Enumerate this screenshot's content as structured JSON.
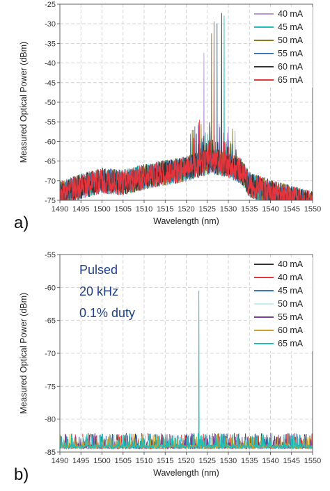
{
  "chart_data": [
    {
      "type": "line",
      "panel_label": "a)",
      "title": "",
      "xlabel": "Wavelength (nm)",
      "ylabel": "Measured Optical Power (dBm)",
      "xlim": [
        1490,
        1550
      ],
      "ylim": [
        -75,
        -25
      ],
      "x_ticks": [
        1490,
        1495,
        1500,
        1505,
        1510,
        1515,
        1520,
        1525,
        1530,
        1535,
        1540,
        1545,
        1550
      ],
      "x_tick_labels": [
        "1490",
        "1495",
        "1500",
        "1505",
        "1510",
        "1515",
        "1520",
        "1525",
        "1530",
        "1535",
        "1540",
        "1545",
        "1550"
      ],
      "y_ticks": [
        -75,
        -70,
        -65,
        -60,
        -55,
        -50,
        -45,
        -40,
        -35,
        -30,
        -25
      ],
      "y_tick_labels": [
        "-75",
        "-70",
        "-65",
        "-60",
        "-55",
        "-50",
        "-45",
        "-40",
        "-35",
        "-30",
        "-25"
      ],
      "grid": true,
      "legend_position": "top-right",
      "series": [
        {
          "name": "40 mA",
          "color": "#b794d4",
          "peak_x": 1524.2,
          "peak_y": -37.5
        },
        {
          "name": "45 mA",
          "color": "#1fbfb8",
          "peak_x": 1529.0,
          "peak_y": -28.0
        },
        {
          "name": "50 mA",
          "color": "#8a7f1c",
          "peak_x": 1526.0,
          "peak_y": -32.5
        },
        {
          "name": "55 mA",
          "color": "#3e77b8",
          "peak_x": 1527.3,
          "peak_y": -30.0
        },
        {
          "name": "60 mA",
          "color": "#333333",
          "peak_x": 1528.4,
          "peak_y": -27.3
        },
        {
          "name": "65 mA",
          "color": "#e8343c",
          "peak_x": 1526.6,
          "peak_y": -29.5
        }
      ],
      "envelope": [
        [
          1490,
          -73.5
        ],
        [
          1495,
          -71.5
        ],
        [
          1500,
          -70.0
        ],
        [
          1505,
          -70.5
        ],
        [
          1510,
          -69.0
        ],
        [
          1515,
          -68.0
        ],
        [
          1520,
          -67.0
        ],
        [
          1523,
          -66.0
        ],
        [
          1526,
          -65.0
        ],
        [
          1530,
          -66.0
        ],
        [
          1533,
          -67.5
        ],
        [
          1535,
          -71.0
        ],
        [
          1540,
          -73.0
        ],
        [
          1545,
          -74.5
        ],
        [
          1550,
          -76.0
        ]
      ]
    },
    {
      "type": "line",
      "panel_label": "b)",
      "title": "",
      "xlabel": "Wavelength (nm)",
      "ylabel": "Measured Optical Power (dBm)",
      "xlim": [
        1490,
        1550
      ],
      "ylim": [
        -85,
        -55
      ],
      "x_ticks": [
        1490,
        1495,
        1500,
        1505,
        1510,
        1515,
        1520,
        1525,
        1530,
        1535,
        1540,
        1545,
        1550
      ],
      "x_tick_labels": [
        "1490",
        "1495",
        "1500",
        "1505",
        "1510",
        "1515",
        "1520",
        "1525",
        "1530",
        "1535",
        "1540",
        "1545",
        "1550"
      ],
      "y_ticks": [
        -85,
        -80,
        -75,
        -70,
        -65,
        -60,
        -55
      ],
      "y_tick_labels": [
        "-85",
        "-80",
        "-75",
        "-70",
        "-65",
        "-60",
        "-55"
      ],
      "grid": true,
      "legend_position": "top-right",
      "annotation_lines": [
        "Pulsed",
        "20 kHz",
        "0.1% duty"
      ],
      "noise_floor": -84.5,
      "series": [
        {
          "name": "40 mA",
          "color": "#333333"
        },
        {
          "name": "40 mA",
          "color": "#e8343c"
        },
        {
          "name": "45 mA",
          "color": "#3e77b8"
        },
        {
          "name": "50 mA",
          "color": "#c6ecef"
        },
        {
          "name": "55 mA",
          "color": "#7a3f96"
        },
        {
          "name": "60 mA",
          "color": "#c8a230"
        },
        {
          "name": "65 mA",
          "color": "#1fbfb8",
          "peak_x": 1523.0,
          "peak_y": -60.5
        }
      ]
    }
  ]
}
